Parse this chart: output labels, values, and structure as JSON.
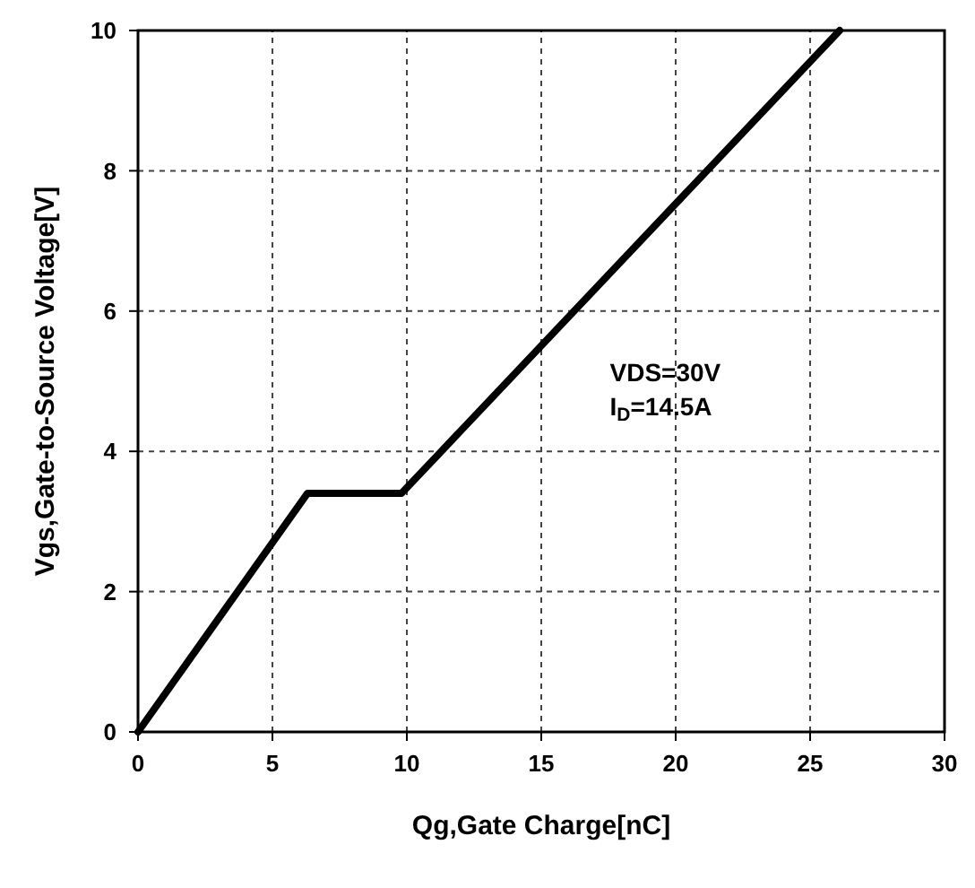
{
  "chart_data": {
    "type": "line",
    "xlabel": "Qg,Gate Charge[nC]",
    "ylabel": "Vgs,Gate-to-Source Voltage[V]",
    "x": [
      0,
      6.3,
      9.8,
      26.1
    ],
    "series": [
      {
        "color": "#000000",
        "values": [
          0,
          3.4,
          3.4,
          10
        ]
      }
    ],
    "xlim": [
      0,
      30
    ],
    "xticks": [
      0,
      5,
      10,
      15,
      20,
      25,
      30
    ],
    "ylim": [
      0,
      10
    ],
    "yticks": [
      0,
      2,
      4,
      6,
      8,
      10
    ],
    "grid": true,
    "marker": "none",
    "line_style": "solid",
    "annotations": [
      "VDS=30V",
      "I$_{D}$=14.5A"
    ]
  }
}
